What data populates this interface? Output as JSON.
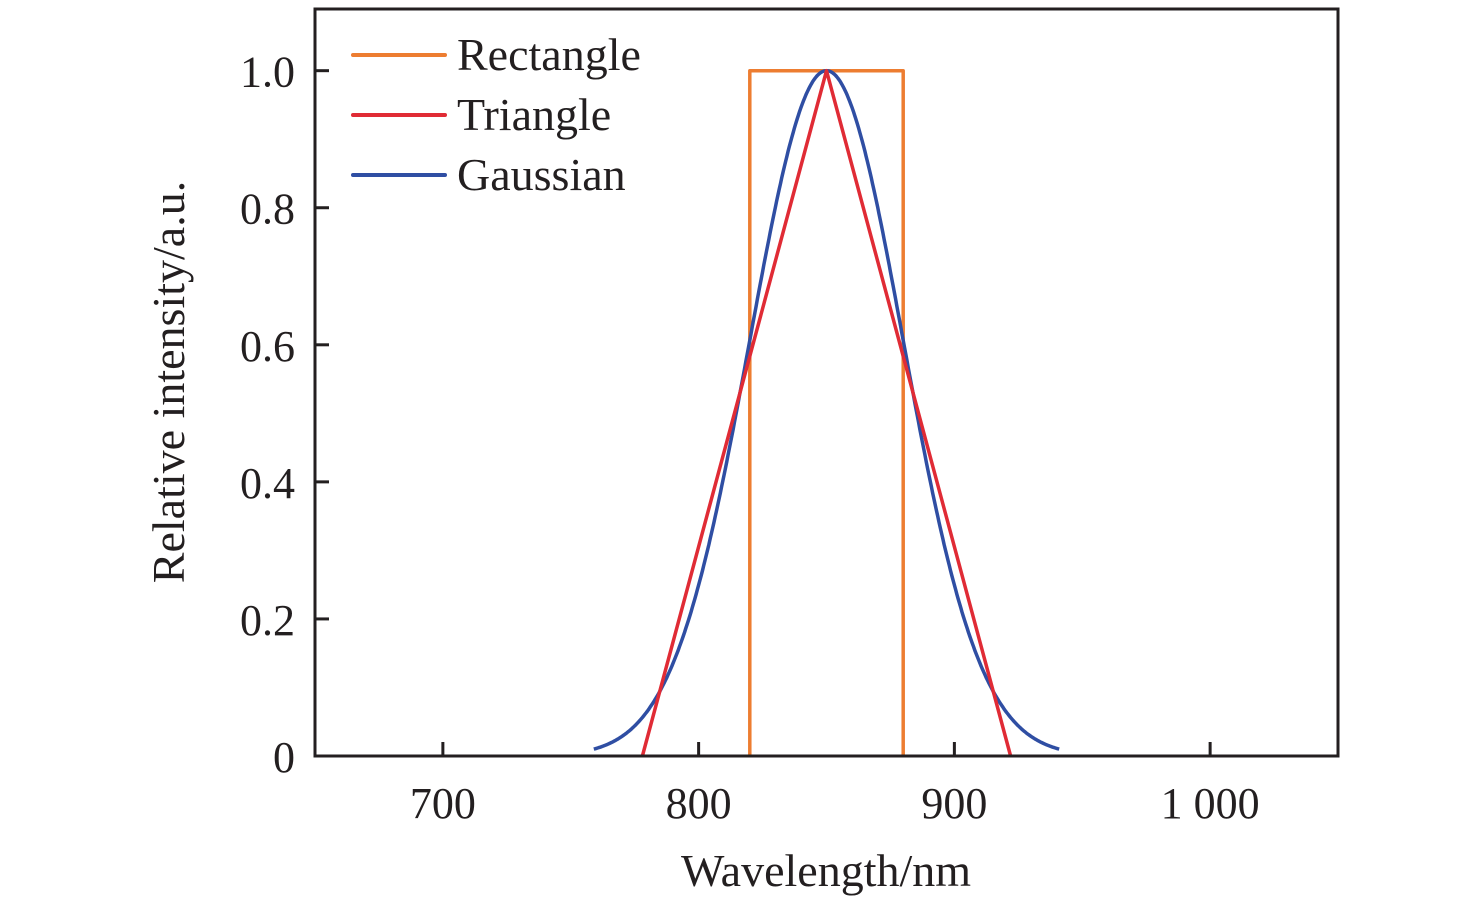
{
  "chart_data": {
    "type": "line",
    "title": "",
    "xlabel": "Wavelength/nm",
    "ylabel": "Relative intensity/a.u.",
    "xlim": [
      650,
      1050
    ],
    "ylim": [
      0,
      1.09
    ],
    "xticks": [
      700,
      800,
      900,
      1000
    ],
    "xtick_labels": [
      "700",
      "800",
      "900",
      "1 000"
    ],
    "yticks": [
      0,
      0.2,
      0.4,
      0.6,
      0.8,
      1.0
    ],
    "ytick_labels": [
      "0",
      "0.2",
      "0.4",
      "0.6",
      "0.8",
      "1.0"
    ],
    "grid": false,
    "legend_position": "top-left",
    "series": [
      {
        "name": "Rectangle",
        "color": "#ed7d31",
        "x": [
          820,
          820,
          880,
          880
        ],
        "y": [
          0,
          1.0,
          1.0,
          0
        ]
      },
      {
        "name": "Triangle",
        "color": "#e02b35",
        "x": [
          778,
          850,
          922
        ],
        "y": [
          0,
          1.0,
          0
        ]
      },
      {
        "name": "Gaussian",
        "color": "#2f4ea3",
        "center": 850,
        "sigma": 30,
        "x_range": [
          759,
          941
        ],
        "y_peak": 1.0
      }
    ]
  }
}
